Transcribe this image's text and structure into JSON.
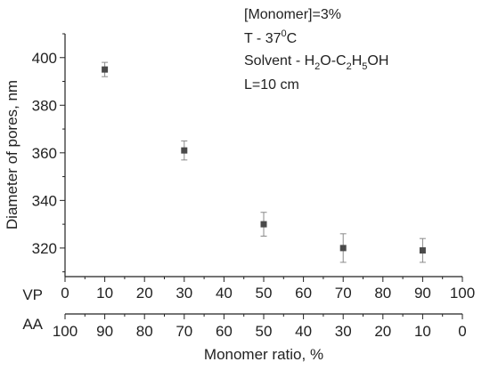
{
  "chart_data": {
    "type": "scatter",
    "title": "",
    "ylabel": "Diameter of pores, nm",
    "xlabel": "Monomer ratio, %",
    "ylim": [
      308,
      410
    ],
    "y_ticks": [
      320,
      340,
      360,
      380,
      400
    ],
    "x_axes": [
      {
        "label": "VP",
        "xlim": [
          0,
          100
        ],
        "ticks": [
          0,
          10,
          20,
          30,
          40,
          50,
          60,
          70,
          80,
          90,
          100
        ]
      },
      {
        "label": "AA",
        "tick_labels": [
          "100",
          "90",
          "80",
          "70",
          "60",
          "50",
          "40",
          "30",
          "20",
          "10",
          "0"
        ]
      }
    ],
    "series": [
      {
        "x": [
          10,
          30,
          50,
          70,
          90
        ],
        "y": [
          395,
          361,
          330,
          320,
          319
        ],
        "y_err": [
          3,
          4,
          5,
          6,
          5
        ],
        "color": "#4a4a4a"
      }
    ],
    "annotations": {
      "monomer": "[Monomer]=3%",
      "temp_prefix": "T - 37",
      "temp_sup": "0",
      "temp_suffix": "C",
      "solvent_prefix": "Solvent - H",
      "solvent_sub1": "2",
      "solvent_mid1": "O-C",
      "solvent_sub2": "2",
      "solvent_mid2": "H",
      "solvent_sub3": "5",
      "solvent_suffix": "OH",
      "length": "L=10 cm"
    }
  }
}
